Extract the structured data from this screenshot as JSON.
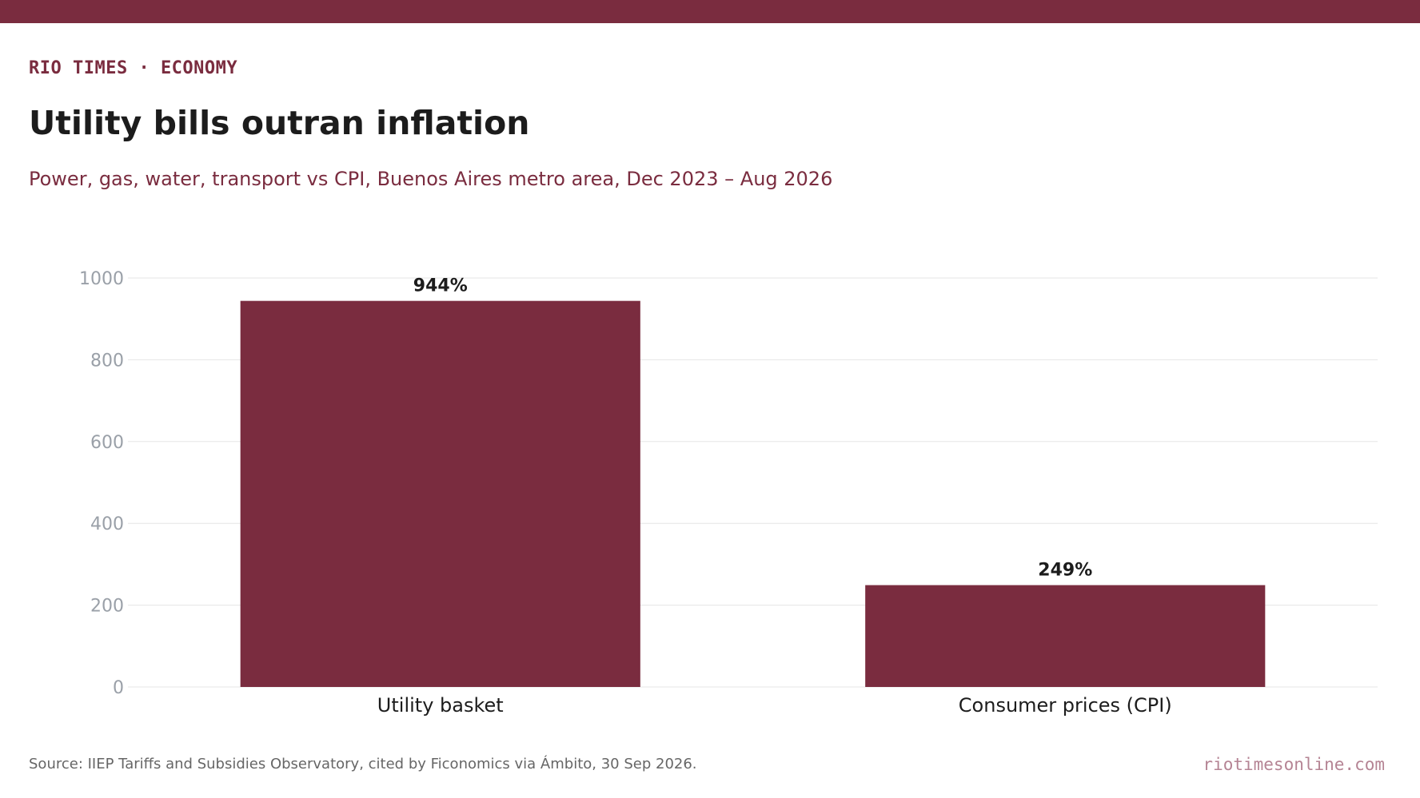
{
  "header": {
    "kicker": "RIO TIMES · ECONOMY",
    "title": "Utility bills outran inflation",
    "subtitle": "Power, gas, water, transport vs CPI, Buenos Aires metro area, Dec 2023 – Aug 2026"
  },
  "footer": {
    "source": "Source: IIEP Tariffs and Subsidies Observatory, cited by Ficonomics via Ámbito, 30 Sep 2026.",
    "brand": "riotimesonline.com"
  },
  "colors": {
    "accent": "#7a2c3f",
    "bar": "#7a2c3f",
    "grid": "#e6e6e6",
    "tick_label": "#9aa0a8",
    "value_label": "#1c1c1c"
  },
  "chart_data": {
    "type": "bar",
    "categories": [
      "Utility basket",
      "Consumer prices (CPI)"
    ],
    "values": [
      944,
      249
    ],
    "data_labels": [
      "944%",
      "249%"
    ],
    "ylim": [
      0,
      1000
    ],
    "yticks": [
      0,
      200,
      400,
      600,
      800,
      1000
    ],
    "grid": true,
    "legend": "none"
  }
}
